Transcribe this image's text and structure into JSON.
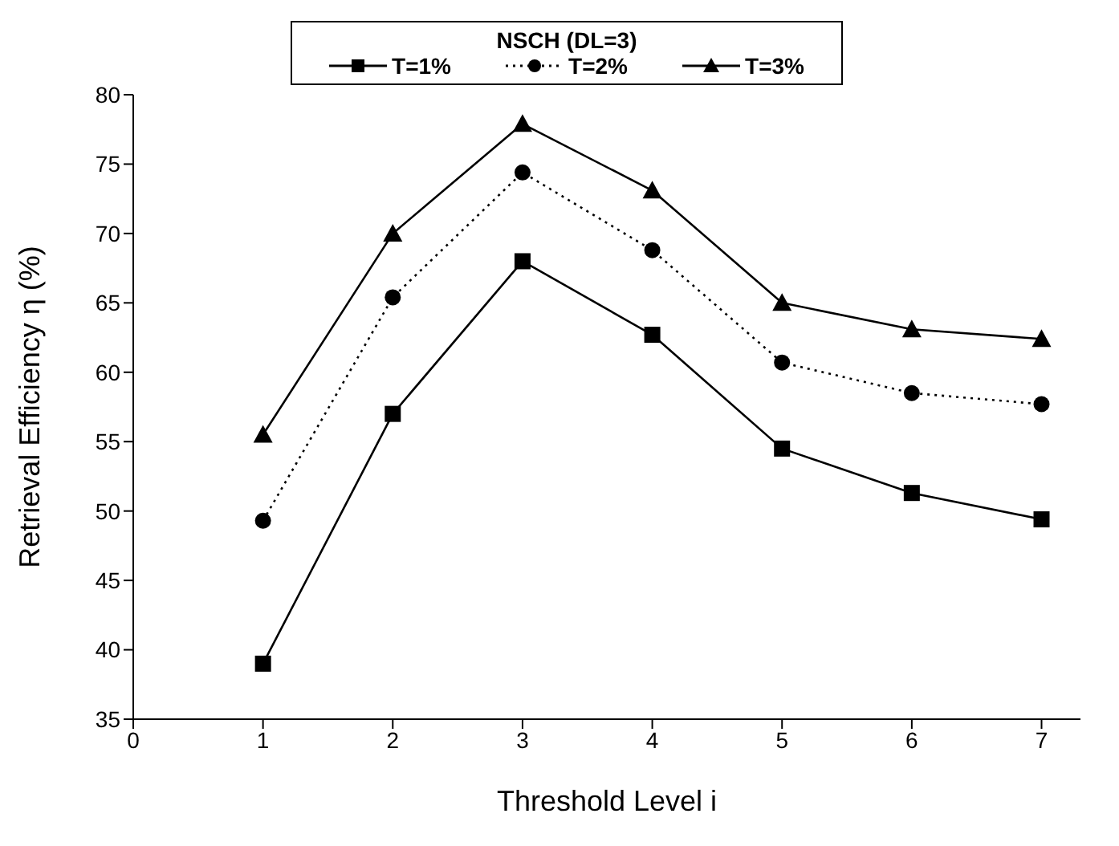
{
  "chart_data": {
    "type": "line",
    "legend_title": "NSCH   (DL=3)",
    "xlabel": "Threshold Level i",
    "ylabel": "Retrieval Efficiency η (%)",
    "x": [
      1,
      2,
      3,
      4,
      5,
      6,
      7
    ],
    "xlim": [
      0,
      7.3
    ],
    "xticks": [
      0,
      1,
      2,
      3,
      4,
      5,
      6,
      7
    ],
    "ylim": [
      35,
      80
    ],
    "yticks": [
      35,
      40,
      45,
      50,
      55,
      60,
      65,
      70,
      75,
      80
    ],
    "grid": false,
    "legend": "top",
    "series": [
      {
        "name": "T=1%",
        "color": "#000000",
        "marker": "square",
        "line_style": "solid",
        "values": [
          39,
          57,
          68,
          62.7,
          54.5,
          51.3,
          49.4
        ]
      },
      {
        "name": "T=2%",
        "color": "#000000",
        "marker": "circle",
        "line_style": "dotted",
        "values": [
          49.3,
          65.4,
          74.4,
          68.8,
          60.7,
          58.5,
          57.7
        ]
      },
      {
        "name": "T=3%",
        "color": "#000000",
        "marker": "triangle",
        "line_style": "solid",
        "values": [
          55.5,
          70,
          77.9,
          73.1,
          65,
          63.1,
          62.4
        ]
      }
    ]
  }
}
